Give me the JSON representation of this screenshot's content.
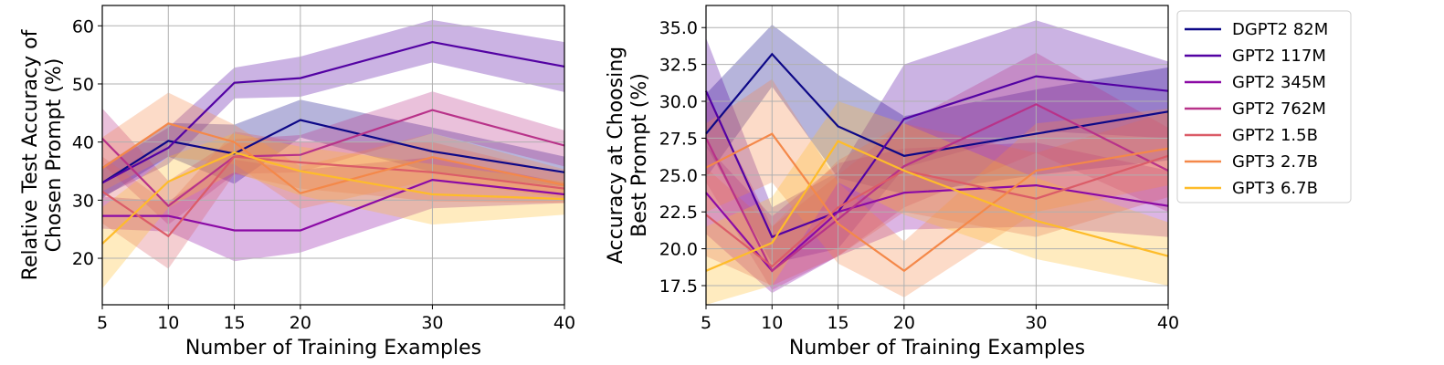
{
  "chart_data": [
    {
      "type": "line",
      "xlabel": "Number of Training Examples",
      "ylabel_lines": [
        "Relative Test Accuracy of",
        "Chosen Prompt (%)"
      ],
      "x": [
        5,
        10,
        15,
        20,
        30,
        40
      ],
      "xticks": [
        5,
        10,
        15,
        20,
        30,
        40
      ],
      "xticklabels": [
        "5",
        "10",
        "15",
        "20",
        "30",
        "40"
      ],
      "xlim": [
        5,
        40
      ],
      "ylim": [
        12,
        63.5
      ],
      "yticks": [
        20,
        30,
        40,
        50,
        60
      ],
      "yticklabels": [
        "20",
        "30",
        "40",
        "50",
        "60"
      ],
      "grid": true,
      "series": [
        {
          "name": "DGPT2 82M",
          "values": [
            33,
            40.2,
            38,
            43.8,
            38.4,
            34.8
          ],
          "lower": [
            30.3,
            37.5,
            32.8,
            40.8,
            34.8,
            32.3
          ],
          "upper": [
            35.8,
            43.3,
            43,
            47.3,
            42.5,
            37.5
          ]
        },
        {
          "name": "GPT2 117M",
          "values": [
            33,
            39,
            50.2,
            51,
            57.2,
            53
          ],
          "lower": [
            30.6,
            36.2,
            47.5,
            47.8,
            53.7,
            48.6
          ],
          "upper": [
            35.6,
            42.5,
            52.8,
            54.7,
            61,
            57.2
          ]
        },
        {
          "name": "GPT2 345M",
          "values": [
            27.3,
            27.3,
            24.8,
            24.8,
            33.5,
            31
          ],
          "lower": [
            25.1,
            24.6,
            19.5,
            21,
            28.6,
            29.5
          ],
          "upper": [
            30.6,
            29.8,
            37,
            35.2,
            37.4,
            33
          ]
        },
        {
          "name": "GPT2 762M",
          "values": [
            40.6,
            29,
            37.5,
            37.8,
            45.5,
            39.4
          ],
          "lower": [
            36.2,
            25.8,
            34.5,
            34.8,
            41.5,
            35.8
          ],
          "upper": [
            45.8,
            33.3,
            40.5,
            41.2,
            48.7,
            42
          ]
        },
        {
          "name": "GPT2 1.5B",
          "values": [
            31.5,
            23.8,
            37.5,
            36.5,
            34.8,
            32
          ],
          "lower": [
            26,
            18.2,
            34.5,
            32,
            29.8,
            29.5
          ],
          "upper": [
            37.5,
            29.3,
            41.8,
            40,
            40,
            34.5
          ]
        },
        {
          "name": "GPT3 2.7B",
          "values": [
            35.5,
            43.2,
            40,
            31.2,
            37.4,
            32.6
          ],
          "lower": [
            31.5,
            37.5,
            36.2,
            28.5,
            33.5,
            30.3
          ],
          "upper": [
            40.8,
            48.5,
            43,
            35.8,
            41.5,
            35.3
          ]
        },
        {
          "name": "GPT3 6.7B",
          "values": [
            22.5,
            33.2,
            38.2,
            35,
            31,
            30.2
          ],
          "lower": [
            14.8,
            28.7,
            34.8,
            30.8,
            25.8,
            27.5
          ],
          "upper": [
            28.8,
            37.5,
            41.5,
            39.2,
            36.2,
            33.2
          ]
        }
      ]
    },
    {
      "type": "line",
      "xlabel": "Number of Training Examples",
      "ylabel_lines": [
        "Accuracy at Choosing",
        "Best Prompt (%)"
      ],
      "x": [
        5,
        10,
        15,
        20,
        30,
        40
      ],
      "xticks": [
        5,
        10,
        15,
        20,
        30,
        40
      ],
      "xticklabels": [
        "5",
        "10",
        "15",
        "20",
        "30",
        "40"
      ],
      "xlim": [
        5,
        40
      ],
      "ylim": [
        16.2,
        36.5
      ],
      "yticks": [
        17.5,
        20,
        22.5,
        25,
        27.5,
        30,
        32.5,
        35
      ],
      "yticklabels": [
        "17.5",
        "20.0",
        "22.5",
        "25.0",
        "27.5",
        "30.0",
        "32.5",
        "35.0"
      ],
      "grid": true,
      "legend_position": "outside-right",
      "series": [
        {
          "name": "DGPT2 82M",
          "values": [
            27.8,
            33.2,
            28.3,
            26.3,
            27.8,
            29.3
          ],
          "lower": [
            24.8,
            31,
            24.8,
            23.7,
            25,
            26
          ],
          "upper": [
            30.5,
            35.2,
            31.8,
            29,
            30.8,
            32.3
          ]
        },
        {
          "name": "GPT2 117M",
          "values": [
            30.7,
            20.8,
            22.5,
            28.8,
            31.7,
            30.7
          ],
          "lower": [
            27,
            19,
            20,
            25.5,
            28,
            27.5
          ],
          "upper": [
            34.3,
            22.8,
            25.2,
            32.5,
            35.5,
            32.7
          ]
        },
        {
          "name": "GPT2 345M",
          "values": [
            23.8,
            18.5,
            22.5,
            23.8,
            24.3,
            22.9
          ],
          "lower": [
            21,
            17,
            19.5,
            21.3,
            21.5,
            20.8
          ],
          "upper": [
            27,
            22.2,
            25.8,
            26.8,
            27.2,
            25.3
          ]
        },
        {
          "name": "GPT2 762M",
          "values": [
            27.5,
            18.5,
            22,
            25.6,
            29.8,
            25.3
          ],
          "lower": [
            24.5,
            17.2,
            19.5,
            22.8,
            26.5,
            22.5
          ],
          "upper": [
            30.5,
            21.5,
            25,
            28.5,
            33.3,
            28.2
          ]
        },
        {
          "name": "GPT2 1.5B",
          "values": [
            22.3,
            18.8,
            22.8,
            25.3,
            23.4,
            26.3
          ],
          "lower": [
            19.5,
            17.5,
            19.5,
            22.5,
            20.8,
            23.5
          ],
          "upper": [
            25.5,
            21.5,
            26,
            28.5,
            26.5,
            29.3
          ]
        },
        {
          "name": "GPT3 2.7B",
          "values": [
            25.5,
            27.8,
            21.7,
            18.5,
            25.3,
            26.8
          ],
          "lower": [
            22.5,
            24.5,
            19,
            16.7,
            22.5,
            24.3
          ],
          "upper": [
            28.5,
            31.5,
            24.5,
            20.5,
            28.5,
            29.5
          ]
        },
        {
          "name": "GPT3 6.7B",
          "values": [
            18.5,
            20.4,
            27.3,
            25.3,
            21.9,
            19.5
          ],
          "lower": [
            16.2,
            17.5,
            24.5,
            22.3,
            19.3,
            17.5
          ],
          "upper": [
            21.5,
            23.5,
            30,
            28.5,
            24.8,
            21.8
          ]
        }
      ]
    }
  ],
  "legend": {
    "entries": [
      {
        "label": "DGPT2 82M",
        "color": "#0d0887"
      },
      {
        "label": "GPT2 117M",
        "color": "#5302a3"
      },
      {
        "label": "GPT2 345M",
        "color": "#8b0aa5"
      },
      {
        "label": "GPT2 762M",
        "color": "#b83289"
      },
      {
        "label": "GPT2 1.5B",
        "color": "#db5c68"
      },
      {
        "label": "GPT3 2.7B",
        "color": "#f48849"
      },
      {
        "label": "GPT3 6.7B",
        "color": "#febc2a"
      }
    ]
  },
  "colors": [
    "#0d0887",
    "#5302a3",
    "#8b0aa5",
    "#b83289",
    "#db5c68",
    "#f48849",
    "#febc2a"
  ]
}
